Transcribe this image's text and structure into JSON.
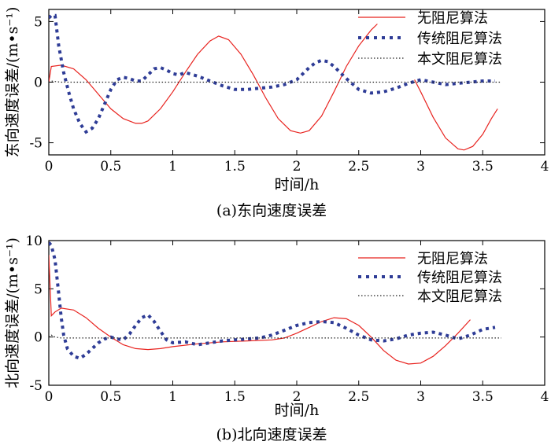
{
  "chart_data": [
    {
      "type": "line",
      "caption": "(a)东向速度误差",
      "xlabel": "时间/h",
      "ylabel": "东向速度误差/(m•s⁻¹)",
      "xlim": [
        0,
        4
      ],
      "ylim": [
        -6,
        6
      ],
      "xticks": [
        "0",
        "0.5",
        "1",
        "1.5",
        "2",
        "2.5",
        "3",
        "3.5",
        "4"
      ],
      "yticks": [
        "-5",
        "0",
        "5"
      ],
      "ytick_values": [
        -5,
        0,
        5
      ],
      "legend_position": "top-right",
      "series": [
        {
          "name": "无阻尼算法",
          "color": "#e8231f",
          "style": "solid",
          "x": [
            0,
            0.02,
            0.1,
            0.2,
            0.3,
            0.4,
            0.5,
            0.6,
            0.7,
            0.75,
            0.8,
            0.9,
            1.0,
            1.1,
            1.2,
            1.3,
            1.37,
            1.45,
            1.55,
            1.65,
            1.75,
            1.85,
            1.95,
            2.03,
            2.1,
            2.2,
            2.3,
            2.4,
            2.5,
            2.6,
            2.65
          ],
          "y": [
            0,
            1.3,
            1.4,
            1.1,
            0.2,
            -1.0,
            -2.2,
            -3.0,
            -3.4,
            -3.4,
            -3.2,
            -2.2,
            -0.8,
            0.8,
            2.3,
            3.4,
            3.8,
            3.5,
            2.3,
            0.6,
            -1.3,
            -3.0,
            -4.0,
            -4.2,
            -4.0,
            -2.8,
            -0.8,
            1.3,
            3.0,
            4.3,
            4.8
          ]
        },
        {
          "name": "无阻尼算法",
          "color": "#e8231f",
          "style": "solid",
          "legend": false,
          "x": [
            2.95,
            3.0,
            3.1,
            3.2,
            3.3,
            3.35,
            3.42,
            3.5,
            3.57,
            3.62
          ],
          "y": [
            0.2,
            -0.8,
            -2.9,
            -4.6,
            -5.5,
            -5.6,
            -5.3,
            -4.3,
            -3.0,
            -2.2
          ]
        },
        {
          "name": "传统阻尼算法",
          "color": "#2e3c96",
          "style": "dotted",
          "x": [
            0,
            0.02,
            0.05,
            0.08,
            0.12,
            0.16,
            0.2,
            0.25,
            0.3,
            0.35,
            0.4,
            0.45,
            0.5,
            0.55,
            0.6,
            0.65,
            0.7,
            0.75,
            0.8,
            0.85,
            0.9,
            0.95,
            1.0,
            1.05,
            1.1,
            1.2,
            1.3,
            1.4,
            1.5,
            1.6,
            1.7,
            1.8,
            1.9,
            2.0,
            2.05,
            2.1,
            2.15,
            2.2,
            2.25,
            2.3,
            2.35,
            2.4,
            2.5,
            2.6,
            2.7,
            2.8,
            2.9,
            3.0,
            3.1,
            3.2,
            3.3,
            3.4,
            3.5,
            3.6
          ],
          "y": [
            5.3,
            5.5,
            5.5,
            3.0,
            0.8,
            -0.8,
            -2.2,
            -3.4,
            -4.1,
            -3.8,
            -3.0,
            -1.8,
            -0.6,
            0.2,
            0.4,
            0.3,
            0.1,
            0.1,
            0.6,
            1.1,
            1.2,
            1.0,
            0.7,
            0.6,
            0.8,
            0.5,
            0.1,
            -0.3,
            -0.6,
            -0.6,
            -0.5,
            -0.4,
            -0.2,
            0.2,
            0.7,
            1.2,
            1.6,
            1.8,
            1.7,
            1.3,
            0.8,
            0.3,
            -0.6,
            -0.9,
            -0.8,
            -0.5,
            -0.1,
            0.2,
            0.0,
            -0.2,
            -0.1,
            0.0,
            0.1,
            0.1
          ]
        },
        {
          "name": "本文阻尼算法",
          "color": "#222222",
          "style": "fine-dotted",
          "x": [
            0,
            0.02,
            0.05,
            0.1,
            0.5,
            1.0,
            1.5,
            2.0,
            2.5,
            3.0,
            3.5,
            3.65
          ],
          "y": [
            0,
            0.1,
            0.05,
            0,
            0,
            0,
            0,
            0,
            0,
            0,
            0,
            0
          ]
        }
      ]
    },
    {
      "type": "line",
      "caption": "(b)北向速度误差",
      "xlabel": "时间/h",
      "ylabel": "北向速度误差/(m•s⁻¹)",
      "xlim": [
        0,
        4
      ],
      "ylim": [
        -5,
        10
      ],
      "xticks": [
        "0",
        "0.5",
        "1",
        "1.5",
        "2",
        "2.5",
        "3",
        "3.5",
        "4"
      ],
      "yticks": [
        "-5",
        "0",
        "5",
        "10"
      ],
      "ytick_values": [
        -5,
        0,
        5,
        10
      ],
      "legend_position": "top-right",
      "series": [
        {
          "name": "无阻尼算法",
          "color": "#e8231f",
          "style": "solid",
          "x": [
            0,
            0.02,
            0.05,
            0.1,
            0.2,
            0.3,
            0.4,
            0.5,
            0.6,
            0.7,
            0.8,
            0.9,
            1.0,
            1.2,
            1.4,
            1.6,
            1.8,
            1.9,
            2.0,
            2.1,
            2.2,
            2.3,
            2.4,
            2.5,
            2.6,
            2.7,
            2.8,
            2.9,
            3.0,
            3.1,
            3.2,
            3.3,
            3.4
          ],
          "y": [
            8.5,
            2.2,
            2.6,
            3.0,
            2.8,
            2.0,
            0.9,
            0.0,
            -0.8,
            -1.2,
            -1.3,
            -1.2,
            -1.0,
            -0.7,
            -0.5,
            -0.4,
            -0.3,
            -0.1,
            0.4,
            1.0,
            1.6,
            2.0,
            1.9,
            1.2,
            0.0,
            -1.4,
            -2.4,
            -2.8,
            -2.7,
            -2.0,
            -0.9,
            0.4,
            1.8
          ]
        },
        {
          "name": "传统阻尼算法",
          "color": "#2e3c96",
          "style": "dotted",
          "x": [
            0,
            0.02,
            0.05,
            0.08,
            0.1,
            0.12,
            0.15,
            0.2,
            0.25,
            0.3,
            0.35,
            0.4,
            0.45,
            0.5,
            0.55,
            0.6,
            0.65,
            0.7,
            0.75,
            0.8,
            0.85,
            0.9,
            0.95,
            1.0,
            1.1,
            1.2,
            1.3,
            1.4,
            1.5,
            1.6,
            1.7,
            1.8,
            1.9,
            2.0,
            2.1,
            2.2,
            2.3,
            2.4,
            2.5,
            2.6,
            2.7,
            2.8,
            2.9,
            3.0,
            3.1,
            3.2,
            3.3,
            3.4,
            3.5,
            3.6
          ],
          "y": [
            9.8,
            9.5,
            8.0,
            4.5,
            2.0,
            0.2,
            -1.2,
            -2.0,
            -2.2,
            -1.8,
            -1.2,
            -0.6,
            -0.2,
            0.0,
            -0.2,
            -0.3,
            0.3,
            1.2,
            2.0,
            2.3,
            1.6,
            0.6,
            -0.3,
            -0.6,
            -0.5,
            -0.8,
            -0.6,
            -0.4,
            -0.3,
            -0.2,
            -0.1,
            0.2,
            0.7,
            1.2,
            1.5,
            1.6,
            1.5,
            0.9,
            0.2,
            -0.3,
            -0.4,
            -0.2,
            0.2,
            0.4,
            0.5,
            0.2,
            -0.2,
            0.2,
            0.8,
            1.0
          ]
        },
        {
          "name": "本文阻尼算法",
          "color": "#222222",
          "style": "fine-dotted",
          "x": [
            0,
            0.02,
            0.05,
            0.1,
            0.5,
            1.0,
            1.5,
            2.0,
            2.5,
            3.0,
            3.5,
            3.65
          ],
          "y": [
            0,
            0.2,
            0.0,
            -0.1,
            -0.1,
            -0.1,
            -0.1,
            -0.1,
            -0.1,
            -0.1,
            -0.1,
            -0.1
          ]
        }
      ]
    }
  ]
}
